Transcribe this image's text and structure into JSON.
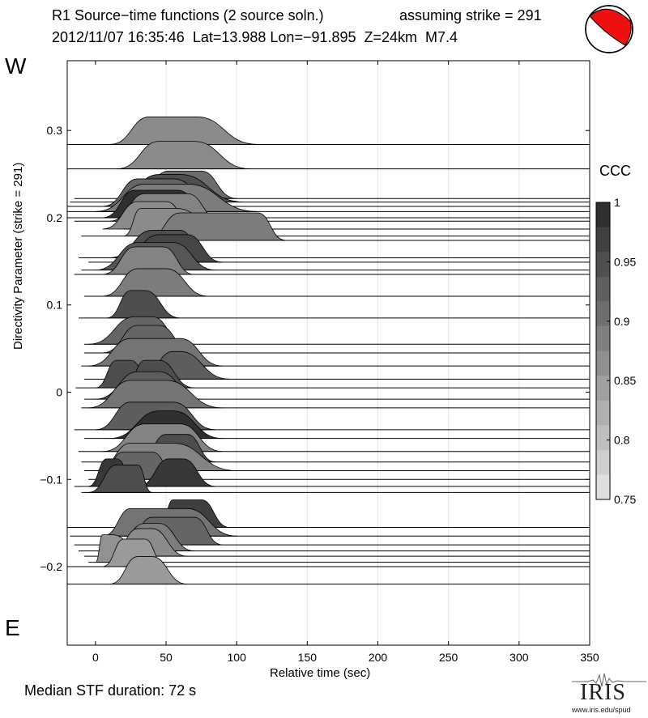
{
  "header": {
    "title_line1": "R1 Source−time functions (2 source soln.)",
    "title_strike": "assuming strike = 291",
    "title_line2": "2012/11/07 16:35:46  Lat=13.988 Lon=−91.895  Z=24km  M7.4"
  },
  "labels": {
    "west": "W",
    "east": "E",
    "median": "Median STF duration: 72 s"
  },
  "logo": {
    "name": "IRIS",
    "url": "www.iris.edu/spud"
  },
  "beachball_colors": {
    "compression": "#ee1111",
    "dilatation": "#ffffff"
  },
  "chart_data": {
    "type": "area",
    "xlabel": "Relative time (sec)",
    "ylabel": "Directivity Parameter (strike = 291)",
    "xlim": [
      -20,
      350
    ],
    "ylim": [
      -0.29,
      0.38
    ],
    "xticks": [
      0,
      50,
      100,
      150,
      200,
      250,
      300,
      350
    ],
    "xtick_labels": [
      "0",
      "50",
      "100",
      "150",
      "200",
      "250",
      "300",
      "350"
    ],
    "yticks": [
      0.3,
      0.2,
      0.1,
      0,
      -0.1,
      -0.2
    ],
    "ytick_labels": [
      "0.3",
      "0.2",
      "0.1",
      "0",
      "−0.1",
      "−0.2"
    ],
    "grid": "vertical",
    "colorbar": {
      "title": "CCC",
      "min": 0.75,
      "max": 1,
      "ticks": [
        1,
        0.95,
        0.9,
        0.85,
        0.8,
        0.75
      ],
      "tick_labels": [
        "1",
        "0.95",
        "0.9",
        "0.85",
        "0.8",
        "0.75"
      ]
    },
    "series": [
      {
        "dp": 0.284,
        "t_start": -20,
        "segments": [
          [
            10,
            38,
            72,
            115
          ]
        ],
        "ccc": 0.87
      },
      {
        "dp": 0.256,
        "t_start": -20,
        "segments": [
          [
            15,
            45,
            70,
            110
          ]
        ],
        "ccc": 0.87
      },
      {
        "dp": 0.222,
        "t_start": -15,
        "segments": [
          [
            25,
            52,
            75,
            100
          ]
        ],
        "ccc": 0.91
      },
      {
        "dp": 0.218,
        "t_start": -18,
        "segments": [
          [
            10,
            45,
            60,
            105
          ]
        ],
        "ccc": 0.95
      },
      {
        "dp": 0.213,
        "t_start": -20,
        "segments": [
          [
            5,
            30,
            55,
            90
          ]
        ],
        "ccc": 0.92
      },
      {
        "dp": 0.207,
        "t_start": -20,
        "segments": [
          [
            0,
            35,
            65,
            115
          ]
        ],
        "ccc": 0.89
      },
      {
        "dp": 0.2,
        "t_start": -20,
        "segments": [
          [
            5,
            28,
            58,
            85
          ]
        ],
        "ccc": 0.99
      },
      {
        "dp": 0.196,
        "t_start": -15,
        "segments": [
          [
            10,
            35,
            65,
            90
          ]
        ],
        "ccc": 0.88
      },
      {
        "dp": 0.187,
        "t_start": 20,
        "segments": [
          [
            5,
            30,
            50,
            72
          ]
        ],
        "ccc": 0.87
      },
      {
        "dp": 0.179,
        "t_start": -10,
        "segments": [
          [
            20,
            32,
            58,
            95
          ]
        ],
        "ccc": 0.87
      },
      {
        "dp": 0.174,
        "t_start": 35,
        "segments": [
          [
            35,
            60,
            115,
            135
          ]
        ],
        "ccc": 0.89
      },
      {
        "dp": 0.154,
        "t_start": -12,
        "segments": [
          [
            10,
            40,
            60,
            80
          ]
        ],
        "ccc": 0.95
      },
      {
        "dp": 0.149,
        "t_start": -5,
        "segments": [
          [
            15,
            45,
            65,
            90
          ]
        ],
        "ccc": 0.96
      },
      {
        "dp": 0.14,
        "t_start": -10,
        "segments": [
          [
            0,
            30,
            55,
            85
          ]
        ],
        "ccc": 0.94
      },
      {
        "dp": 0.135,
        "t_start": -15,
        "segments": [
          [
            5,
            28,
            48,
            70
          ]
        ],
        "ccc": 0.88
      },
      {
        "dp": 0.11,
        "t_start": -8,
        "segments": [
          [
            5,
            30,
            50,
            80
          ]
        ],
        "ccc": 0.89
      },
      {
        "dp": 0.085,
        "t_start": -12,
        "segments": [
          [
            8,
            25,
            35,
            60
          ]
        ],
        "ccc": 0.95
      },
      {
        "dp": 0.055,
        "t_start": -8,
        "segments": [
          [
            -5,
            28,
            40,
            65
          ]
        ],
        "ccc": 0.92
      },
      {
        "dp": 0.045,
        "t_start": -8,
        "segments": [
          [
            5,
            30,
            45,
            70
          ]
        ],
        "ccc": 0.92
      },
      {
        "dp": 0.03,
        "t_start": -10,
        "segments": [
          [
            -5,
            25,
            60,
            90
          ]
        ],
        "ccc": 0.9
      },
      {
        "dp": 0.015,
        "t_start": -8,
        "segments": [
          [
            30,
            55,
            60,
            95
          ]
        ],
        "ccc": 0.93
      },
      {
        "dp": 0.005,
        "t_start": -14,
        "segments": [
          [
            0,
            15,
            25,
            42
          ],
          [
            20,
            35,
            45,
            70
          ]
        ],
        "ccc": 0.95
      },
      {
        "dp": -0.008,
        "t_start": -8,
        "segments": [
          [
            0,
            30,
            45,
            75
          ]
        ],
        "ccc": 0.93
      },
      {
        "dp": -0.018,
        "t_start": -10,
        "segments": [
          [
            -5,
            25,
            50,
            90
          ]
        ],
        "ccc": 0.9
      },
      {
        "dp": -0.043,
        "t_start": -15,
        "segments": [
          [
            0,
            25,
            55,
            85
          ]
        ],
        "ccc": 0.93
      },
      {
        "dp": -0.053,
        "t_start": -8,
        "segments": [
          [
            10,
            45,
            55,
            90
          ]
        ],
        "ccc": 0.99
      },
      {
        "dp": -0.068,
        "t_start": -12,
        "segments": [
          [
            5,
            35,
            60,
            90
          ]
        ],
        "ccc": 0.88
      },
      {
        "dp": -0.08,
        "t_start": -10,
        "segments": [
          [
            30,
            50,
            65,
            85
          ]
        ],
        "ccc": 0.95
      },
      {
        "dp": -0.09,
        "t_start": -8,
        "segments": [
          [
            0,
            25,
            55,
            100
          ]
        ],
        "ccc": 0.88
      },
      {
        "dp": -0.1,
        "t_start": -5,
        "segments": [
          [
            0,
            20,
            40,
            60
          ]
        ],
        "ccc": 0.92
      },
      {
        "dp": -0.108,
        "t_start": -15,
        "segments": [
          [
            -5,
            8,
            15,
            30
          ],
          [
            30,
            52,
            62,
            85
          ]
        ],
        "ccc": 0.98
      },
      {
        "dp": -0.115,
        "t_start": -10,
        "segments": [
          [
            -5,
            15,
            30,
            40
          ]
        ],
        "ccc": 0.95
      },
      {
        "dp": -0.155,
        "t_start": -20,
        "segments": [
          [
            45,
            55,
            75,
            95
          ]
        ],
        "ccc": 0.97
      },
      {
        "dp": -0.165,
        "t_start": -18,
        "segments": [
          [
            5,
            25,
            65,
            100
          ]
        ],
        "ccc": 0.9
      },
      {
        "dp": -0.175,
        "t_start": -15,
        "segments": [
          [
            20,
            40,
            70,
            90
          ]
        ],
        "ccc": 0.92
      },
      {
        "dp": -0.182,
        "t_start": -12,
        "segments": [
          [
            10,
            35,
            45,
            70
          ]
        ],
        "ccc": 0.89
      },
      {
        "dp": -0.188,
        "t_start": -8,
        "segments": [
          [
            10,
            30,
            40,
            65
          ]
        ],
        "ccc": 0.87
      },
      {
        "dp": -0.195,
        "t_start": -5,
        "segments": [
          [
            0,
            5,
            12,
            40
          ]
        ],
        "ccc": 0.86
      },
      {
        "dp": -0.2,
        "t_start": -20,
        "segments": [
          [
            5,
            20,
            35,
            50
          ]
        ],
        "ccc": 0.85
      },
      {
        "dp": -0.22,
        "t_start": -20,
        "segments": [
          [
            10,
            30,
            40,
            65
          ]
        ],
        "ccc": 0.85
      }
    ]
  }
}
